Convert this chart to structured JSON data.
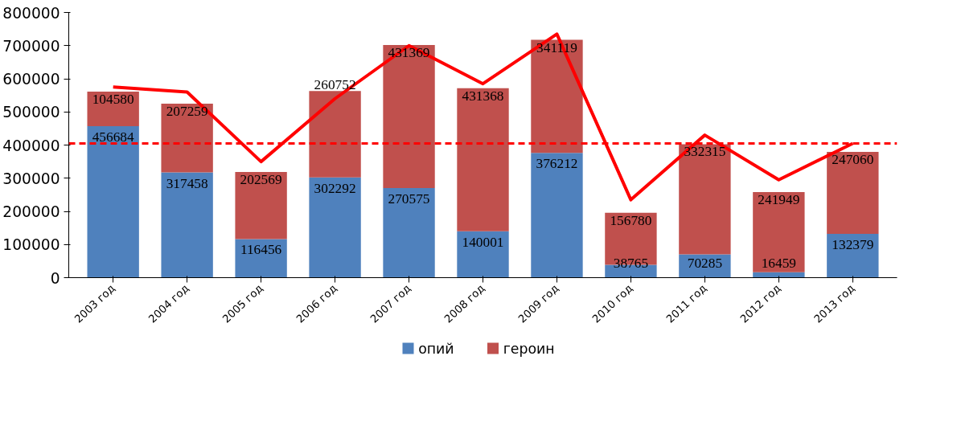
{
  "chart_data": {
    "type": "bar",
    "stacked": true,
    "categories": [
      "2003 год",
      "2004 год",
      "2005 год",
      "2006 год",
      "2007 год",
      "2008 год",
      "2009 год",
      "2010 год",
      "2011 год",
      "2012 год",
      "2013 год"
    ],
    "series": [
      {
        "name": "опий",
        "color": "#4f81bd",
        "values": [
          456684,
          317458,
          116456,
          302292,
          270575,
          140001,
          376212,
          38765,
          70285,
          16459,
          132379
        ],
        "value_labels": [
          "456684",
          "317458",
          "116456",
          "302292",
          "270575",
          "140001",
          "376212",
          "38765",
          "70285",
          "16459",
          "132379"
        ]
      },
      {
        "name": "героин",
        "color": "#c0504d",
        "values": [
          104580,
          207259,
          202569,
          260752,
          431369,
          431368,
          341119,
          156780,
          332315,
          241949,
          247060
        ],
        "value_labels": [
          "104580",
          "207259",
          "202569",
          "260752",
          "431369",
          "431368",
          "341119",
          "156780",
          "332315",
          "241949",
          "247060"
        ]
      },
      {
        "type": "line",
        "color": "#ff0000",
        "values": [
          575000,
          560000,
          350000,
          540000,
          700000,
          585000,
          735000,
          235000,
          430000,
          295000,
          405000
        ]
      }
    ],
    "ylim": [
      0,
      800000
    ],
    "yticks": [
      0,
      100000,
      200000,
      300000,
      400000,
      500000,
      600000,
      700000,
      800000
    ],
    "ref_lines": [
      {
        "axis": "y",
        "value": 405000,
        "color": "#ff0000",
        "line_style": "dashed"
      }
    ],
    "legend": "bottom",
    "grid": false
  }
}
